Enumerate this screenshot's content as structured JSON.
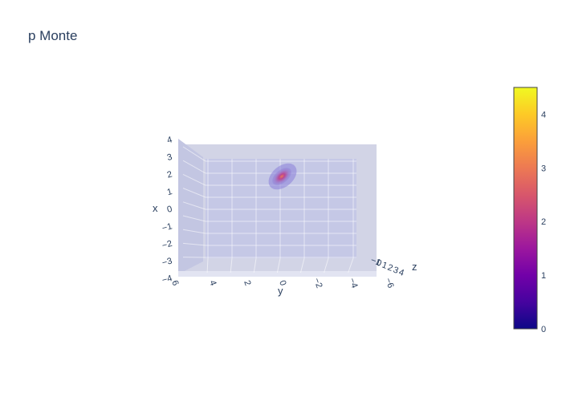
{
  "chart_data": {
    "type": "volume-3d",
    "title": "p Monte",
    "x_axis": {
      "label": "x",
      "ticks": [
        "4",
        "3",
        "2",
        "1",
        "0",
        "−1",
        "−2",
        "−3",
        "−4"
      ]
    },
    "y_axis": {
      "label": "y",
      "ticks": [
        "6",
        "4",
        "2",
        "0",
        "−2",
        "−4",
        "−6"
      ]
    },
    "z_axis": {
      "label": "z",
      "ticks": [
        "−1",
        "0",
        "1",
        "2",
        "3",
        "4"
      ]
    },
    "colorbar": {
      "ticks": [
        "0",
        "1",
        "2",
        "3",
        "4"
      ],
      "range": [
        0,
        4.5
      ],
      "colorscale": [
        "#0d0887",
        "#46039f",
        "#7201a8",
        "#9c179e",
        "#bd3786",
        "#d8576b",
        "#ed7953",
        "#fb9f3a",
        "#fdca26",
        "#f0f921"
      ]
    },
    "blob": {
      "center": {
        "y": 0.5,
        "x": 1.8
      },
      "peak_value": 2.6
    },
    "scene_colors": {
      "background": "#d2d4e6",
      "front_pane": "#c5c8e6",
      "grid": "#ffffff"
    }
  }
}
